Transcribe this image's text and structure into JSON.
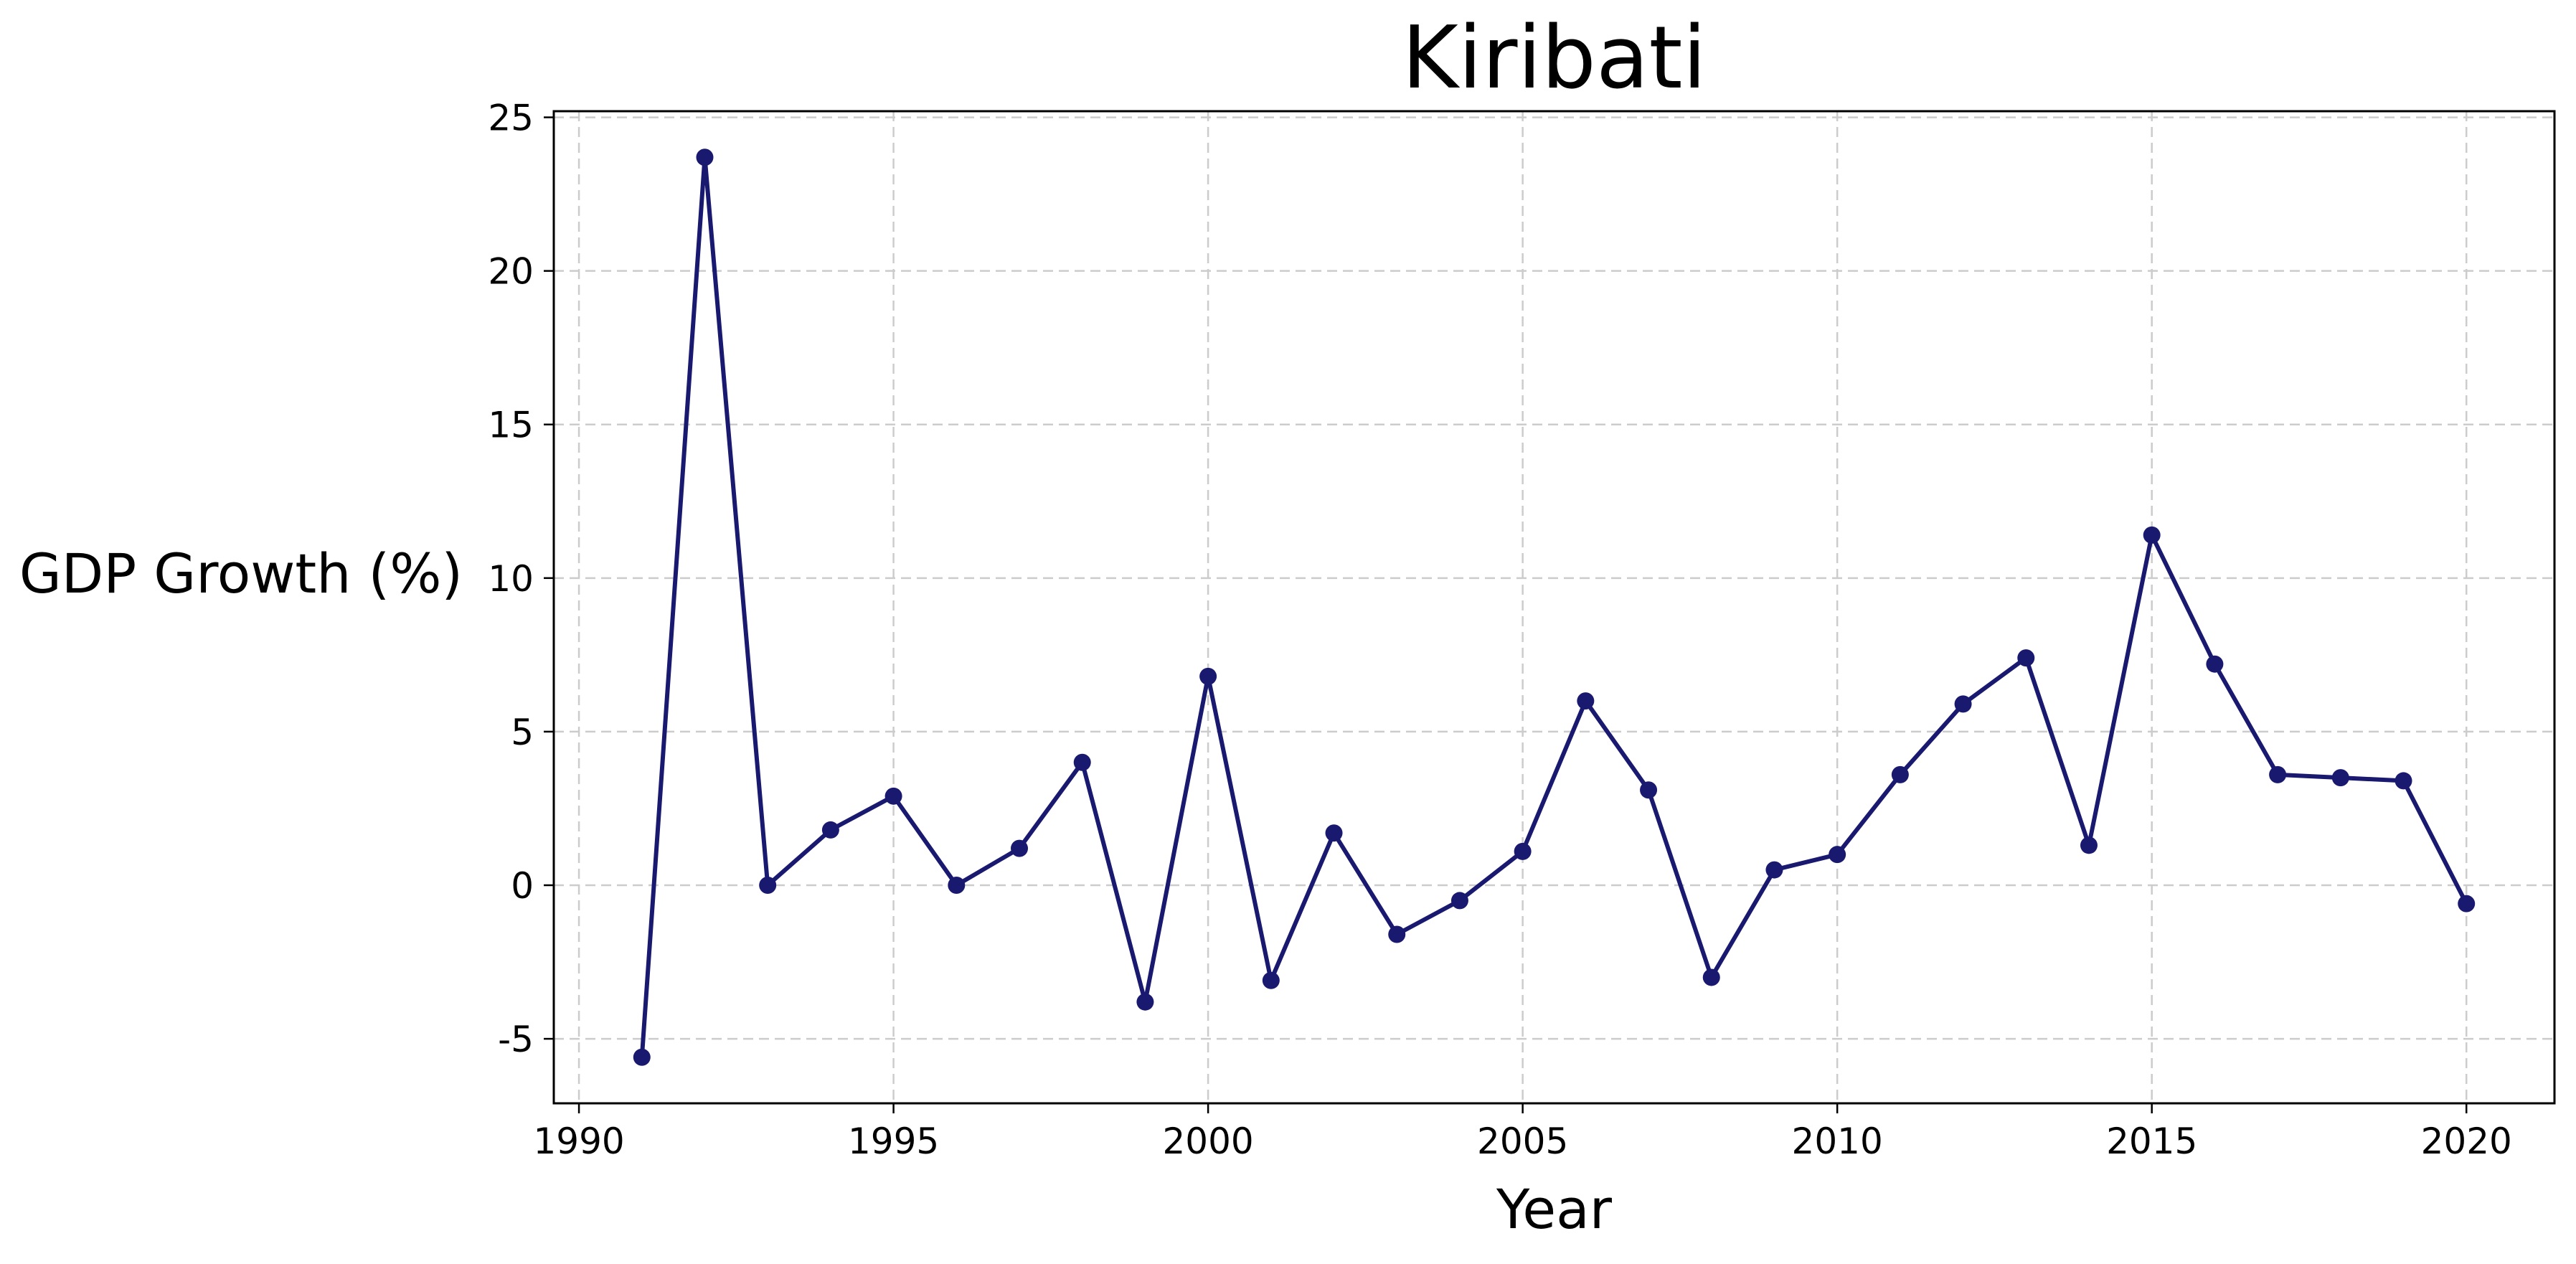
{
  "chart_data": {
    "type": "line",
    "title": "Kiribati",
    "xlabel": "Year",
    "ylabel": "GDP Growth (%)",
    "xlim": [
      1989.6,
      2021.4
    ],
    "ylim": [
      -7.1,
      25.2
    ],
    "xticks": [
      1990,
      1995,
      2000,
      2005,
      2010,
      2015,
      2020
    ],
    "yticks": [
      -5,
      0,
      5,
      10,
      15,
      20,
      25
    ],
    "grid": true,
    "series": [
      {
        "color": "#191970",
        "x": [
          1991,
          1992,
          1993,
          1994,
          1995,
          1996,
          1997,
          1998,
          1999,
          2000,
          2001,
          2002,
          2003,
          2004,
          2005,
          2006,
          2007,
          2008,
          2009,
          2010,
          2011,
          2012,
          2013,
          2014,
          2015,
          2016,
          2017,
          2018,
          2019,
          2020
        ],
        "values": [
          -5.6,
          23.7,
          0.0,
          1.8,
          2.9,
          0.0,
          1.2,
          4.0,
          -3.8,
          6.8,
          -3.1,
          1.7,
          -1.6,
          -0.5,
          1.1,
          6.0,
          3.1,
          -3.0,
          0.5,
          1.0,
          3.6,
          5.9,
          7.4,
          1.3,
          11.4,
          7.2,
          3.6,
          3.5,
          3.4,
          -0.6
        ]
      }
    ]
  }
}
